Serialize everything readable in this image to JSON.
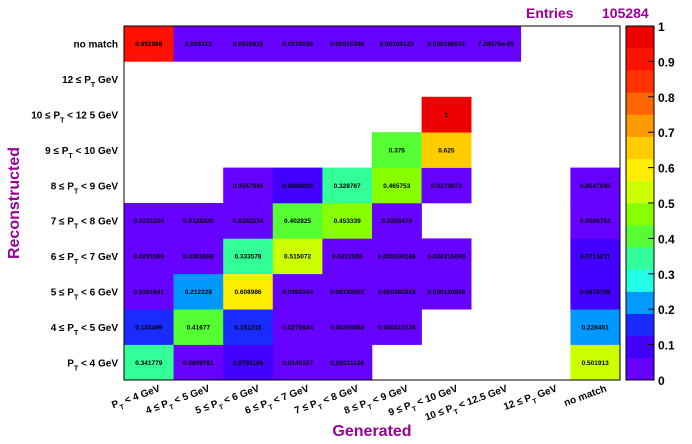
{
  "stats": {
    "label": "Entries",
    "value": "105284"
  },
  "chart_data": {
    "type": "heatmap",
    "xlabel": "Generated",
    "ylabel": "Reconstructed",
    "x_categories": [
      "P_T < 4 GeV",
      "4 ≤ P_T < 5 GeV",
      "5 ≤ P_T < 6 GeV",
      "6 ≤ P_T < 7 GeV",
      "7 ≤ P_T < 8 GeV",
      "8 ≤ P_T < 9 GeV",
      "9 ≤ P_T < 10 GeV",
      "10 ≤ P_T < 12.5 GeV",
      "12 ≤ P_T GeV",
      "no match"
    ],
    "y_categories": [
      "P_T < 4 GeV",
      "4 ≤ P_T < 5 GeV",
      "5 ≤ P_T < 6 GeV",
      "6 ≤ P_T < 7 GeV",
      "7 ≤ P_T < 8 GeV",
      "8 ≤ P_T < 9 GeV",
      "9 ≤ P_T < 10 GeV",
      "10 ≤ P_T < 12 5 GeV",
      "12 ≤ P_T GeV",
      "no match"
    ],
    "cells": [
      {
        "x": 0,
        "y": 0,
        "value": 0.341779,
        "label": "0.341779"
      },
      {
        "x": 1,
        "y": 0,
        "value": 0.0609781,
        "label": "0.0609781"
      },
      {
        "x": 2,
        "y": 0,
        "value": 0.0791106,
        "label": "0.0791106"
      },
      {
        "x": 3,
        "y": 0,
        "value": 0.0145157,
        "label": "0.0145157"
      },
      {
        "x": 4,
        "y": 0,
        "value": 0.00211138,
        "label": "0.00211138"
      },
      {
        "x": 9,
        "y": 0,
        "value": 0.501913,
        "label": "0.501913"
      },
      {
        "x": 0,
        "y": 1,
        "value": 0.133499,
        "label": "0.133499"
      },
      {
        "x": 1,
        "y": 1,
        "value": 0.41677,
        "label": "0.41677"
      },
      {
        "x": 2,
        "y": 1,
        "value": 0.151215,
        "label": "0.151215"
      },
      {
        "x": 3,
        "y": 1,
        "value": 0.0275824,
        "label": "0.0275824"
      },
      {
        "x": 4,
        "y": 1,
        "value": 0.00208868,
        "label": "0.00208868"
      },
      {
        "x": 5,
        "y": 1,
        "value": 0.000413736,
        "label": "0.000413736"
      },
      {
        "x": 9,
        "y": 1,
        "value": 0.228451,
        "label": "0.228451"
      },
      {
        "x": 0,
        "y": 2,
        "value": 0.0391641,
        "label": "0.0391641"
      },
      {
        "x": 1,
        "y": 2,
        "value": 0.212328,
        "label": "0.212328"
      },
      {
        "x": 2,
        "y": 2,
        "value": 0.608986,
        "label": "0.608986"
      },
      {
        "x": 3,
        "y": 2,
        "value": 0.0392244,
        "label": "0.0392244"
      },
      {
        "x": 4,
        "y": 2,
        "value": 0.00193502,
        "label": "0.00193502"
      },
      {
        "x": 5,
        "y": 2,
        "value": 0.000382815,
        "label": "0.000382815"
      },
      {
        "x": 6,
        "y": 2,
        "value": 0.000120936,
        "label": "0.000120936"
      },
      {
        "x": 9,
        "y": 2,
        "value": 0.0678795,
        "label": "0.0678795"
      },
      {
        "x": 0,
        "y": 3,
        "value": 0.0201559,
        "label": "0.0201559"
      },
      {
        "x": 1,
        "y": 3,
        "value": 0.0365568,
        "label": "0.0365568"
      },
      {
        "x": 2,
        "y": 3,
        "value": 0.333578,
        "label": "0.333578"
      },
      {
        "x": 3,
        "y": 3,
        "value": 0.515072,
        "label": "0.515072"
      },
      {
        "x": 4,
        "y": 3,
        "value": 0.0222565,
        "label": "0.0222565"
      },
      {
        "x": 5,
        "y": 3,
        "value": 0.000630186,
        "label": "0.000630186"
      },
      {
        "x": 6,
        "y": 3,
        "value": 0.000315093,
        "label": "0.000315093"
      },
      {
        "x": 9,
        "y": 3,
        "value": 0.0714211,
        "label": "0.0714211"
      },
      {
        "x": 0,
        "y": 4,
        "value": 0.0231164,
        "label": "0.0231164"
      },
      {
        "x": 1,
        "y": 4,
        "value": 0.0128425,
        "label": "0.0128425"
      },
      {
        "x": 2,
        "y": 4,
        "value": 0.0282534,
        "label": "0.0282534"
      },
      {
        "x": 3,
        "y": 4,
        "value": 0.402825,
        "label": "0.402825"
      },
      {
        "x": 4,
        "y": 4,
        "value": 0.453339,
        "label": "0.453339"
      },
      {
        "x": 5,
        "y": 4,
        "value": 0.0205479,
        "label": "0.0205479"
      },
      {
        "x": 9,
        "y": 4,
        "value": 0.0590753,
        "label": "0.0590753"
      },
      {
        "x": 2,
        "y": 5,
        "value": 0.0547945,
        "label": "0.0547945"
      },
      {
        "x": 3,
        "y": 5,
        "value": 0.0684932,
        "label": "0.0684932"
      },
      {
        "x": 4,
        "y": 5,
        "value": 0.328767,
        "label": "0.328767"
      },
      {
        "x": 5,
        "y": 5,
        "value": 0.465753,
        "label": "0.465753"
      },
      {
        "x": 6,
        "y": 5,
        "value": 0.0273973,
        "label": "0.0273973"
      },
      {
        "x": 9,
        "y": 5,
        "value": 0.0547945,
        "label": "0.0547945"
      },
      {
        "x": 5,
        "y": 6,
        "value": 0.375,
        "label": "0.375"
      },
      {
        "x": 6,
        "y": 6,
        "value": 0.625,
        "label": "0.625"
      },
      {
        "x": 6,
        "y": 7,
        "value": 1,
        "label": "1"
      },
      {
        "x": 0,
        "y": 9,
        "value": 0.892868,
        "label": "0.892868"
      },
      {
        "x": 1,
        "y": 9,
        "value": 0.026312,
        "label": "0.026312"
      },
      {
        "x": 2,
        "y": 9,
        "value": 0.0525915,
        "label": "0.0525915"
      },
      {
        "x": 3,
        "y": 9,
        "value": 0.0218156,
        "label": "0.0218156"
      },
      {
        "x": 4,
        "y": 9,
        "value": 0.00515206,
        "label": "0.00515206"
      },
      {
        "x": 5,
        "y": 9,
        "value": 0.00105123,
        "label": "0.00105123"
      },
      {
        "x": 6,
        "y": 9,
        "value": 0.000186531,
        "label": "0.000186531"
      },
      {
        "x": 7,
        "y": 9,
        "value": 7.28575e-05,
        "label": "7.28575e-05"
      }
    ],
    "zlim": [
      0,
      1
    ],
    "colorbar_ticks": [
      "0",
      "0.1",
      "0.2",
      "0.3",
      "0.4",
      "0.5",
      "0.6",
      "0.7",
      "0.8",
      "0.9",
      "1"
    ],
    "palette": [
      "#6600ff",
      "#4400ff",
      "#1a2bff",
      "#0099ff",
      "#22ffe6",
      "#33ff99",
      "#55ff33",
      "#88ff00",
      "#ccff00",
      "#ffee00",
      "#ffcc00",
      "#ff9900",
      "#ff6600",
      "#ff3300",
      "#ff1100",
      "#ee0000"
    ],
    "empty_color": "#ffffff",
    "legend": "right"
  }
}
